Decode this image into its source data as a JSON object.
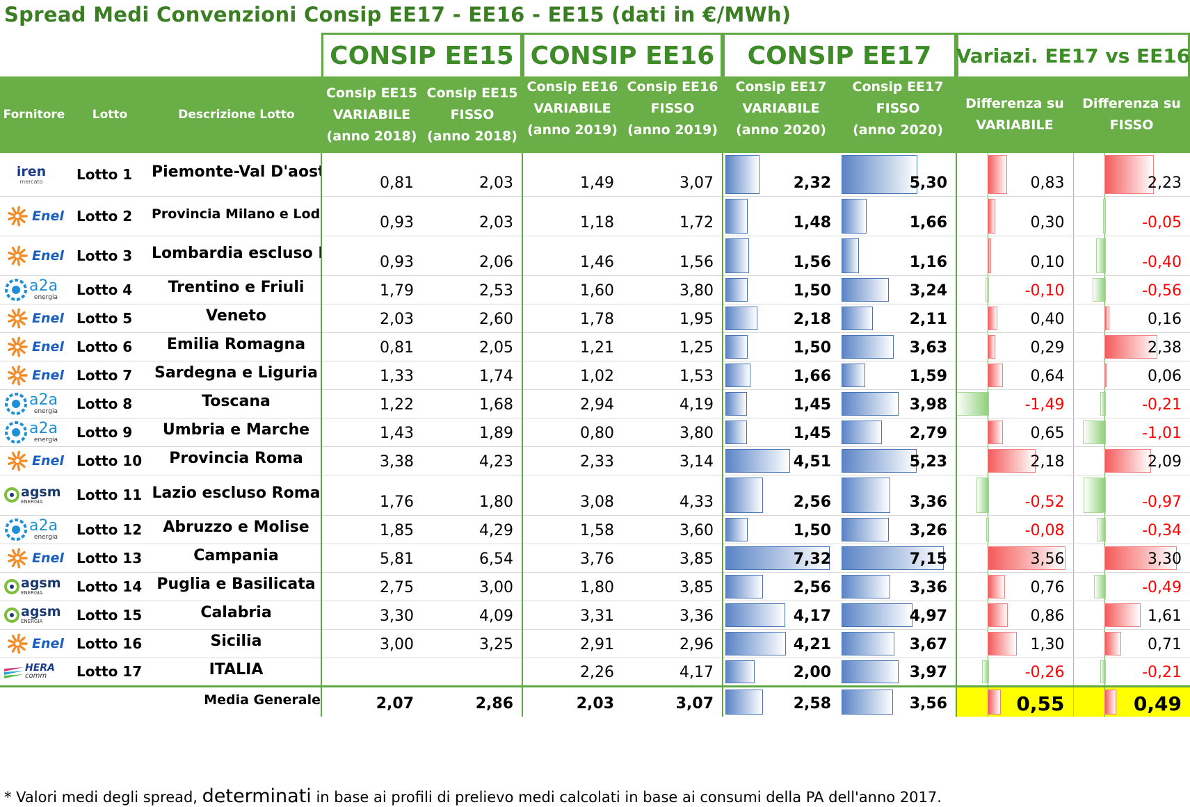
{
  "title": "Spread Medi Convenzioni Consip EE17 - EE16 - EE15 (dati in €/MWh)",
  "groups": {
    "ee15": "CONSIP EE15",
    "ee16": "CONSIP EE16",
    "ee17": "CONSIP EE17",
    "variazioni": "Variazi. EE17 vs EE16"
  },
  "headers": {
    "fornitore": "Fornitore",
    "lotto": "Lotto",
    "descrizione": "Descrizione Lotto",
    "ee15_var": [
      "Consip EE15",
      "VARIABILE",
      "(anno 2018)"
    ],
    "ee15_fix": [
      "Consip EE15",
      "FISSO",
      "(anno 2018)"
    ],
    "ee16_var": [
      "Consip EE16",
      "VARIABILE",
      "(anno 2019)"
    ],
    "ee16_fix": [
      "Consip EE16",
      "FISSO",
      "(anno 2019)"
    ],
    "ee17_var": [
      "Consip EE17",
      "VARIABILE",
      "(anno 2020)"
    ],
    "ee17_fix": [
      "Consip EE17",
      "FISSO",
      "(anno 2020)"
    ],
    "diff_var": [
      "Differenza su",
      "VARIABILE"
    ],
    "diff_fix": [
      "Differenza su",
      "FISSO"
    ]
  },
  "logos": {
    "iren": {
      "text": "iren",
      "sub": "mercato",
      "color": "#1a3a8a",
      "icon": "iren-logo-icon"
    },
    "enel": {
      "text": "Enel",
      "color": "#1a5fbf",
      "petal": "#f28c28",
      "icon": "enel-logo-icon"
    },
    "a2a": {
      "text": "a2a",
      "sub": "energia",
      "color": "#1f8fd6",
      "icon": "a2a-logo-icon"
    },
    "agsm": {
      "text": "agsm",
      "sub": "ENERGIA",
      "color": "#1a3a6e",
      "icon": "agsm-logo-icon"
    },
    "hera": {
      "text": "HERA",
      "sub": "comm",
      "color": "#1a3a8a",
      "icon": "hera-logo-icon"
    }
  },
  "rows": [
    {
      "logo": "iren",
      "lotto": "Lotto 1",
      "desc": "Piemonte-Val D'aosta",
      "ee15_var": "0,81",
      "ee15_fix": "2,03",
      "ee16_var": "1,49",
      "ee16_fix": "3,07",
      "ee17_var": "2,32",
      "ee17_fix": "5,30",
      "diff_var": "0,83",
      "diff_fix": "2,23"
    },
    {
      "logo": "enel",
      "lotto": "Lotto 2",
      "desc": "Provincia Milano e Lodi",
      "ee15_var": "0,93",
      "ee15_fix": "2,03",
      "ee16_var": "1,18",
      "ee16_fix": "1,72",
      "ee17_var": "1,48",
      "ee17_fix": "1,66",
      "diff_var": "0,30",
      "diff_fix": "-0,05"
    },
    {
      "logo": "enel",
      "lotto": "Lotto 3",
      "desc": "Lombardia escluso Mi",
      "ee15_var": "0,93",
      "ee15_fix": "2,06",
      "ee16_var": "1,46",
      "ee16_fix": "1,56",
      "ee17_var": "1,56",
      "ee17_fix": "1,16",
      "diff_var": "0,10",
      "diff_fix": "-0,40"
    },
    {
      "logo": "a2a",
      "lotto": "Lotto 4",
      "desc": "Trentino e Friuli",
      "ee15_var": "1,79",
      "ee15_fix": "2,53",
      "ee16_var": "1,60",
      "ee16_fix": "3,80",
      "ee17_var": "1,50",
      "ee17_fix": "3,24",
      "diff_var": "-0,10",
      "diff_fix": "-0,56"
    },
    {
      "logo": "enel",
      "lotto": "Lotto 5",
      "desc": "Veneto",
      "ee15_var": "2,03",
      "ee15_fix": "2,60",
      "ee16_var": "1,78",
      "ee16_fix": "1,95",
      "ee17_var": "2,18",
      "ee17_fix": "2,11",
      "diff_var": "0,40",
      "diff_fix": "0,16"
    },
    {
      "logo": "enel",
      "lotto": "Lotto 6",
      "desc": "Emilia Romagna",
      "ee15_var": "0,81",
      "ee15_fix": "2,05",
      "ee16_var": "1,21",
      "ee16_fix": "1,25",
      "ee17_var": "1,50",
      "ee17_fix": "3,63",
      "diff_var": "0,29",
      "diff_fix": "2,38"
    },
    {
      "logo": "enel",
      "lotto": "Lotto 7",
      "desc": "Sardegna e Liguria",
      "ee15_var": "1,33",
      "ee15_fix": "1,74",
      "ee16_var": "1,02",
      "ee16_fix": "1,53",
      "ee17_var": "1,66",
      "ee17_fix": "1,59",
      "diff_var": "0,64",
      "diff_fix": "0,06"
    },
    {
      "logo": "a2a",
      "lotto": "Lotto 8",
      "desc": "Toscana",
      "ee15_var": "1,22",
      "ee15_fix": "1,68",
      "ee16_var": "2,94",
      "ee16_fix": "4,19",
      "ee17_var": "1,45",
      "ee17_fix": "3,98",
      "diff_var": "-1,49",
      "diff_fix": "-0,21"
    },
    {
      "logo": "a2a",
      "lotto": "Lotto 9",
      "desc": "Umbria e Marche",
      "ee15_var": "1,43",
      "ee15_fix": "1,89",
      "ee16_var": "0,80",
      "ee16_fix": "3,80",
      "ee17_var": "1,45",
      "ee17_fix": "2,79",
      "diff_var": "0,65",
      "diff_fix": "-1,01"
    },
    {
      "logo": "enel",
      "lotto": "Lotto 10",
      "desc": "Provincia Roma",
      "ee15_var": "3,38",
      "ee15_fix": "4,23",
      "ee16_var": "2,33",
      "ee16_fix": "3,14",
      "ee17_var": "4,51",
      "ee17_fix": "5,23",
      "diff_var": "2,18",
      "diff_fix": "2,09"
    },
    {
      "logo": "agsm",
      "lotto": "Lotto 11",
      "desc": "Lazio escluso Roma",
      "ee15_var": "1,76",
      "ee15_fix": "1,80",
      "ee16_var": "3,08",
      "ee16_fix": "4,33",
      "ee17_var": "2,56",
      "ee17_fix": "3,36",
      "diff_var": "-0,52",
      "diff_fix": "-0,97"
    },
    {
      "logo": "a2a",
      "lotto": "Lotto 12",
      "desc": "Abruzzo e Molise",
      "ee15_var": "1,85",
      "ee15_fix": "4,29",
      "ee16_var": "1,58",
      "ee16_fix": "3,60",
      "ee17_var": "1,50",
      "ee17_fix": "3,26",
      "diff_var": "-0,08",
      "diff_fix": "-0,34"
    },
    {
      "logo": "enel",
      "lotto": "Lotto 13",
      "desc": "Campania",
      "ee15_var": "5,81",
      "ee15_fix": "6,54",
      "ee16_var": "3,76",
      "ee16_fix": "3,85",
      "ee17_var": "7,32",
      "ee17_fix": "7,15",
      "diff_var": "3,56",
      "diff_fix": "3,30"
    },
    {
      "logo": "agsm",
      "lotto": "Lotto 14",
      "desc": "Puglia e Basilicata",
      "ee15_var": "2,75",
      "ee15_fix": "3,00",
      "ee16_var": "1,80",
      "ee16_fix": "3,85",
      "ee17_var": "2,56",
      "ee17_fix": "3,36",
      "diff_var": "0,76",
      "diff_fix": "-0,49"
    },
    {
      "logo": "agsm",
      "lotto": "Lotto 15",
      "desc": "Calabria",
      "ee15_var": "3,30",
      "ee15_fix": "4,09",
      "ee16_var": "3,31",
      "ee16_fix": "3,36",
      "ee17_var": "4,17",
      "ee17_fix": "4,97",
      "diff_var": "0,86",
      "diff_fix": "1,61"
    },
    {
      "logo": "enel",
      "lotto": "Lotto 16",
      "desc": "Sicilia",
      "ee15_var": "3,00",
      "ee15_fix": "3,25",
      "ee16_var": "2,91",
      "ee16_fix": "2,96",
      "ee17_var": "4,21",
      "ee17_fix": "3,67",
      "diff_var": "1,30",
      "diff_fix": "0,71"
    },
    {
      "logo": "hera",
      "lotto": "Lotto 17",
      "desc": "ITALIA",
      "ee15_var": "",
      "ee15_fix": "",
      "ee16_var": "2,26",
      "ee16_fix": "4,17",
      "ee17_var": "2,00",
      "ee17_fix": "3,97",
      "diff_var": "-0,26",
      "diff_fix": "-0,21"
    }
  ],
  "totals": {
    "label": "Media Generale",
    "ee15_var": "2,07",
    "ee15_fix": "2,86",
    "ee16_var": "2,03",
    "ee16_fix": "3,07",
    "ee17_var": "2,58",
    "ee17_fix": "3,56",
    "diff_var": "0,55",
    "diff_fix": "0,49"
  },
  "footnote": {
    "pre": "* Valori medi degli spread, ",
    "big": "determinati",
    "post": " in base ai profili di prelievo medi calcolati in base ai consumi della PA dell'anno 2017."
  },
  "colors": {
    "green": "#6aae48",
    "dark_green": "#3a7d22",
    "negative": "#ff0000",
    "highlight": "#ffff00"
  }
}
